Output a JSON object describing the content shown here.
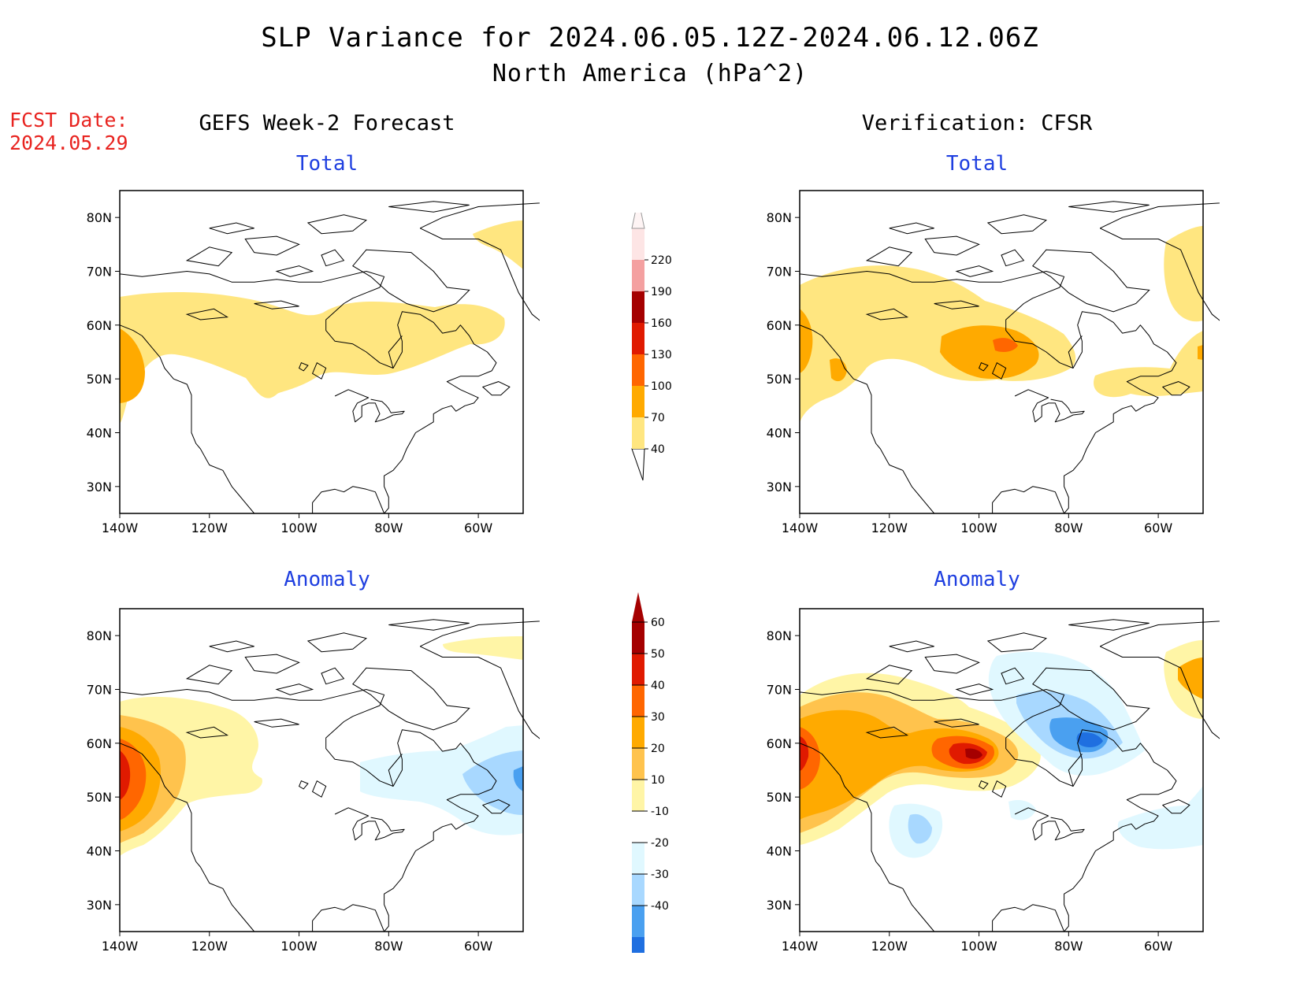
{
  "title": {
    "line1": "SLP Variance for 2024.06.05.12Z-2024.06.12.06Z",
    "line2": "North America (hPa^2)"
  },
  "fcst_date": {
    "label": "FCST Date:",
    "value": "2024.05.29"
  },
  "columns": {
    "left": "GEFS Week-2 Forecast",
    "right": "Verification: CFSR"
  },
  "panels": {
    "forecast_total": "Total",
    "verification_total": "Total",
    "forecast_anomaly": "Anomaly",
    "verification_anomaly": "Anomaly"
  },
  "axes": {
    "lat_labels": [
      "80N",
      "70N",
      "60N",
      "50N",
      "40N",
      "30N"
    ],
    "lon_labels": [
      "140W",
      "120W",
      "100W",
      "80W",
      "60W"
    ]
  },
  "colorbars": {
    "total": {
      "levels": [
        "40",
        "70",
        "100",
        "130",
        "160",
        "190",
        "220"
      ],
      "colors": [
        "#ffe680",
        "#ffaa00",
        "#ff6600",
        "#e01a00",
        "#a50000",
        "#f4a0a0",
        "#fde5e5"
      ]
    },
    "anomaly": {
      "levels": [
        "60",
        "50",
        "40",
        "30",
        "20",
        "10",
        "-10",
        "-20",
        "-30",
        "-40"
      ],
      "colors_top_to_bottom": [
        "#a50000",
        "#e01a00",
        "#ff6600",
        "#ffaa00",
        "#ffc34d",
        "#fff5a6",
        "#ffffff",
        "#e0f8ff",
        "#a8d8ff",
        "#4aa0f0",
        "#1f6fe0",
        "#1a5fd0"
      ]
    }
  },
  "contour_colors": {
    "t40": "#ffe680",
    "t70": "#ffaa00",
    "t100": "#ff6600",
    "a10": "#fff5a6",
    "a20": "#ffc34d",
    "a30": "#ffaa00",
    "a40": "#ff6600",
    "a50": "#e01a00",
    "a60": "#a50000",
    "an10": "#e0f8ff",
    "an20": "#a8d8ff",
    "an30": "#4aa0f0"
  }
}
